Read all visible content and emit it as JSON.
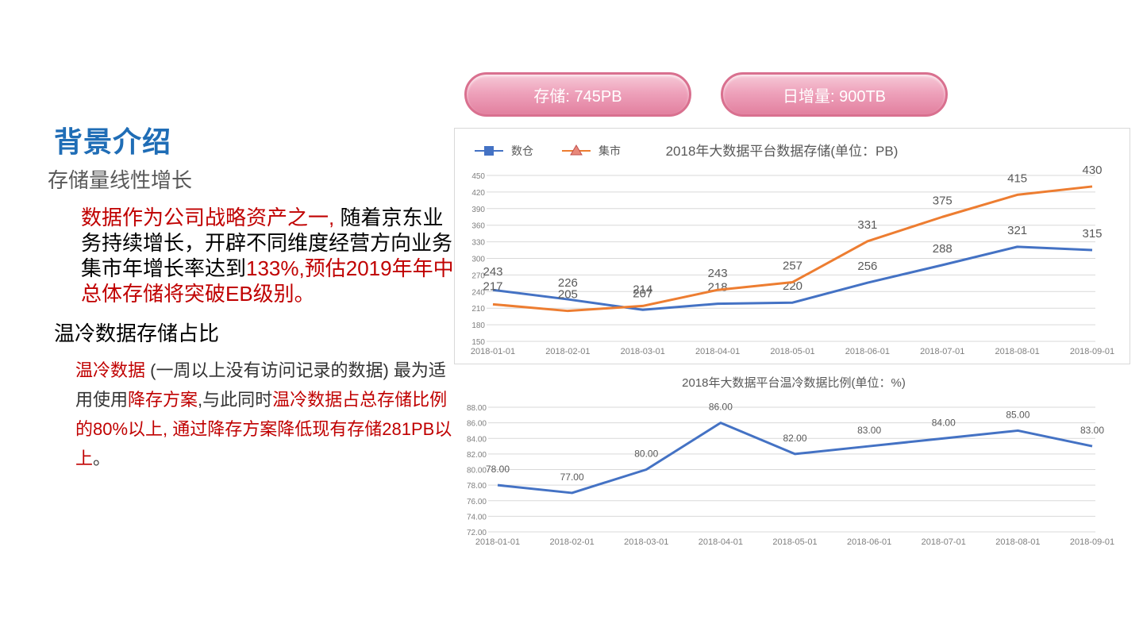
{
  "left": {
    "title": "背景介绍",
    "subtitle": "存储量线性增长",
    "para1": [
      {
        "text": "数据作为公司战略资产之一,",
        "red": true
      },
      {
        "text": " 随着京东业务持续增长，开辟不同维度经营方向业务集市年增长率达到",
        "red": false
      },
      {
        "text": "133%,预估2019年年中总体存储将突破EB级别。",
        "red": true
      }
    ],
    "heading2": "温冷数据存储占比",
    "para2": [
      {
        "text": "温冷数据",
        "red": true
      },
      {
        "text": " (一周以上没有访问记录的数据) 最为适用使用",
        "red": false
      },
      {
        "text": "降存方案",
        "red": true
      },
      {
        "text": ",与此同时",
        "red": false
      },
      {
        "text": "温冷数据占总存储比例的80%以上, 通过降存方案降低现有存储281PB以上",
        "red": true
      },
      {
        "text": "。",
        "red": false
      }
    ]
  },
  "badges": {
    "storage": "存储: 745PB",
    "daily": "日增量: 900TB"
  },
  "chart_data": [
    {
      "type": "line",
      "title": "2018年大数据平台数据存储(单位：PB)",
      "categories": [
        "2018-01-01",
        "2018-02-01",
        "2018-03-01",
        "2018-04-01",
        "2018-05-01",
        "2018-06-01",
        "2018-07-01",
        "2018-08-01",
        "2018-09-01"
      ],
      "series": [
        {
          "name": "数仓",
          "color": "#4472c4",
          "marker": "square",
          "values": [
            243,
            226,
            207,
            218,
            220,
            256,
            288,
            321,
            315
          ]
        },
        {
          "name": "集市",
          "color": "#ed7d31",
          "marker": "triangle",
          "values": [
            217,
            205,
            214,
            243,
            257,
            331,
            375,
            415,
            430
          ]
        }
      ],
      "ylim": [
        150,
        450
      ],
      "yticks": [
        150,
        180,
        210,
        240,
        270,
        300,
        330,
        360,
        390,
        420,
        450
      ],
      "legend": "top-left",
      "grid": true
    },
    {
      "type": "line",
      "title": "2018年大数据平台温冷数据比例(单位：%)",
      "categories": [
        "2018-01-01",
        "2018-02-01",
        "2018-03-01",
        "2018-04-01",
        "2018-05-01",
        "2018-06-01",
        "2018-07-01",
        "2018-08-01",
        "2018-09-01"
      ],
      "series": [
        {
          "color": "#4472c4",
          "values": [
            78,
            77,
            80,
            86,
            82,
            83,
            84,
            85,
            83
          ]
        }
      ],
      "ylim": [
        72,
        88
      ],
      "yticks": [
        72,
        74,
        76,
        78,
        80,
        82,
        84,
        86,
        88
      ],
      "legend": "none",
      "grid": true
    }
  ]
}
